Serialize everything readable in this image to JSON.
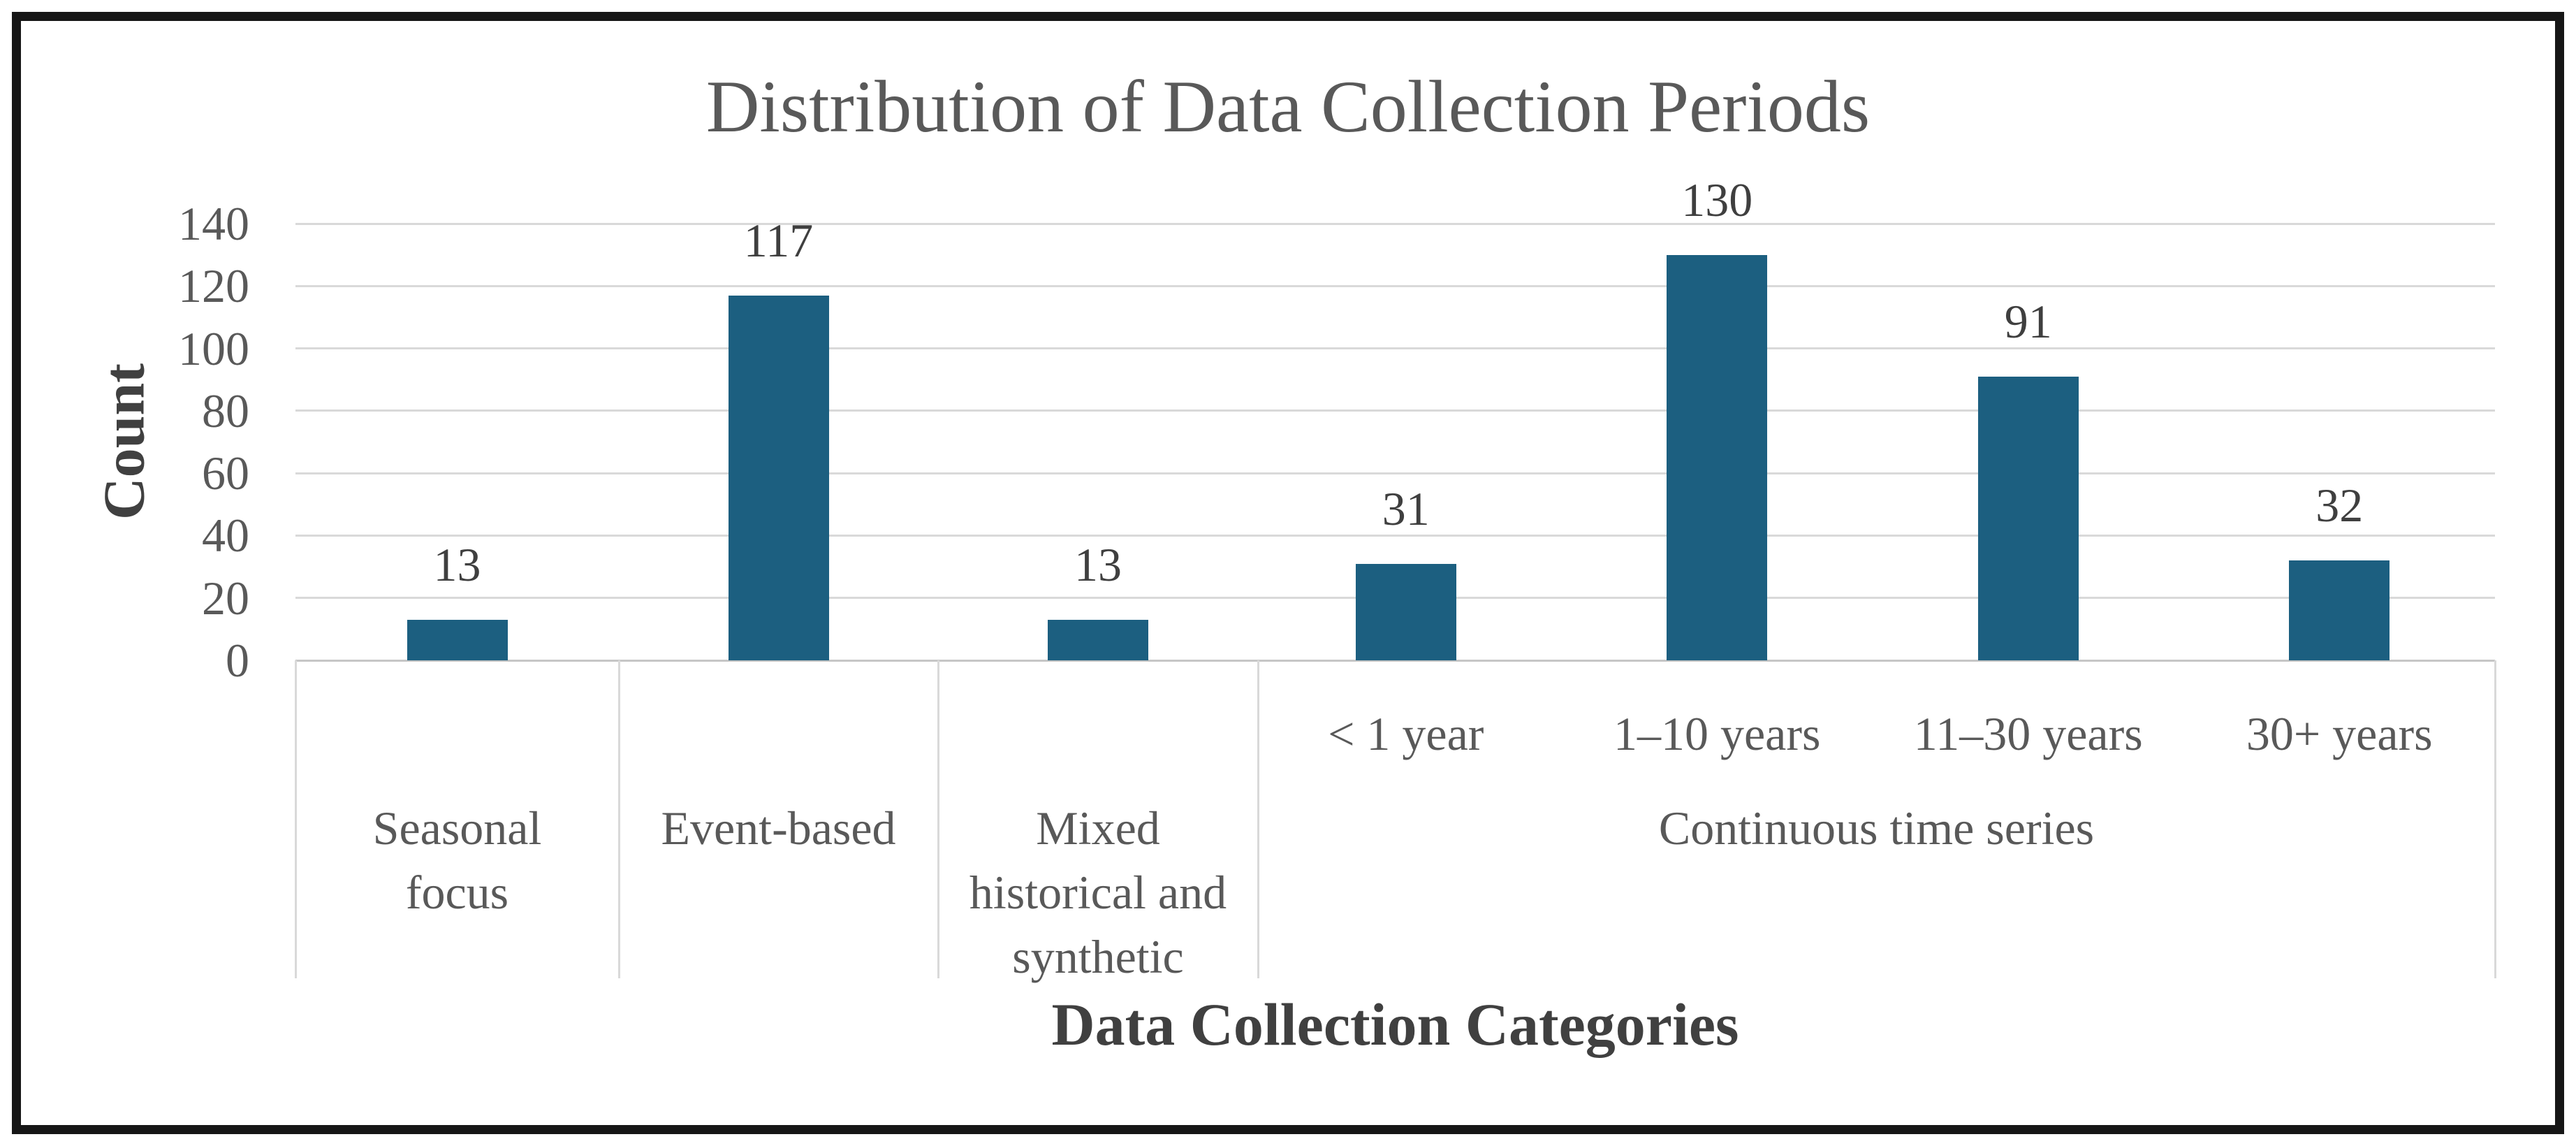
{
  "figure": {
    "background": "#FFFFFF",
    "border_color": "#161616"
  },
  "chart_data": {
    "type": "bar",
    "title": "Distribution of Data Collection Periods",
    "xlabel": "Data Collection Categories",
    "ylabel": "Count",
    "ylim": [
      0,
      140
    ],
    "yticks": [
      0,
      20,
      40,
      60,
      80,
      100,
      120,
      140
    ],
    "grid": "horizontal gridlines only",
    "legend": "none",
    "bar_color": "#1C5F80",
    "gridline_color": "#D9D9D9",
    "axis_line_color": "#C6C6C6",
    "title_color": "#595959",
    "tick_label_color": "#595959",
    "value_label_color": "#3F3F3F",
    "axis_title_color": "#404040",
    "groups": [
      {
        "label": "Seasonal focus",
        "lines": [
          "Seasonal",
          "focus"
        ],
        "items": [
          {
            "sublabel": "",
            "value": 13
          }
        ]
      },
      {
        "label": "Event-based",
        "lines": [
          "Event-based"
        ],
        "items": [
          {
            "sublabel": "",
            "value": 117
          }
        ]
      },
      {
        "label": "Mixed historical and synthetic",
        "lines": [
          "Mixed",
          "historical and",
          "synthetic"
        ],
        "items": [
          {
            "sublabel": "",
            "value": 13
          }
        ]
      },
      {
        "label": "Continuous time series",
        "lines": [
          "Continuous time series"
        ],
        "items": [
          {
            "sublabel": "< 1 year",
            "value": 31
          },
          {
            "sublabel": "1–10 years",
            "value": 130
          },
          {
            "sublabel": "11–30 years",
            "value": 91
          },
          {
            "sublabel": "30+ years",
            "value": 32
          }
        ]
      }
    ]
  }
}
